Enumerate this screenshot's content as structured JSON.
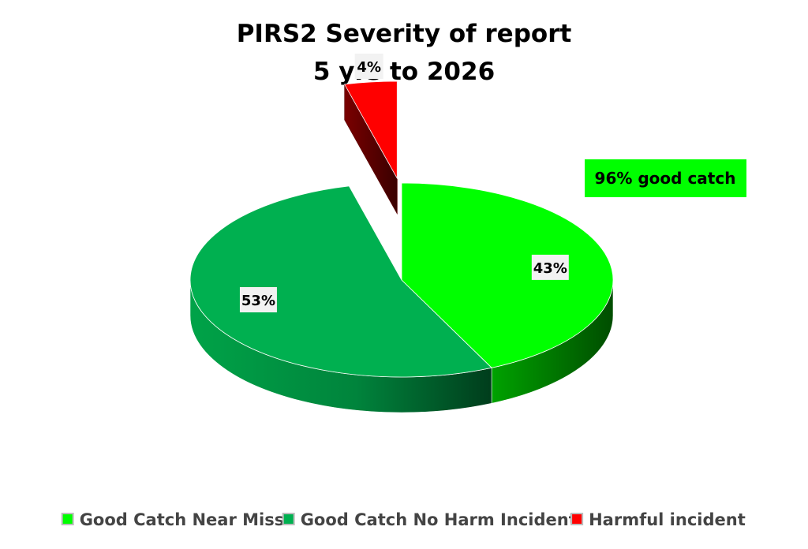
{
  "chart_data": {
    "type": "pie",
    "title": "PIRS2 Severity of report",
    "subtitle": "5 yrs to 2026",
    "categories": [
      "Good Catch Near Miss",
      "Good Catch No Harm Incident",
      "Harmful incident"
    ],
    "values": [
      43,
      53,
      4
    ],
    "unit": "%",
    "data_labels": [
      "43%",
      "53%",
      "4%"
    ],
    "exploded": [
      false,
      false,
      true
    ],
    "style": "3d",
    "legend_position": "bottom",
    "colors": [
      "#00ff00",
      "#00b050",
      "#ff0000"
    ],
    "annotation": "96% good catch",
    "annotation_color": "#00ff00"
  }
}
